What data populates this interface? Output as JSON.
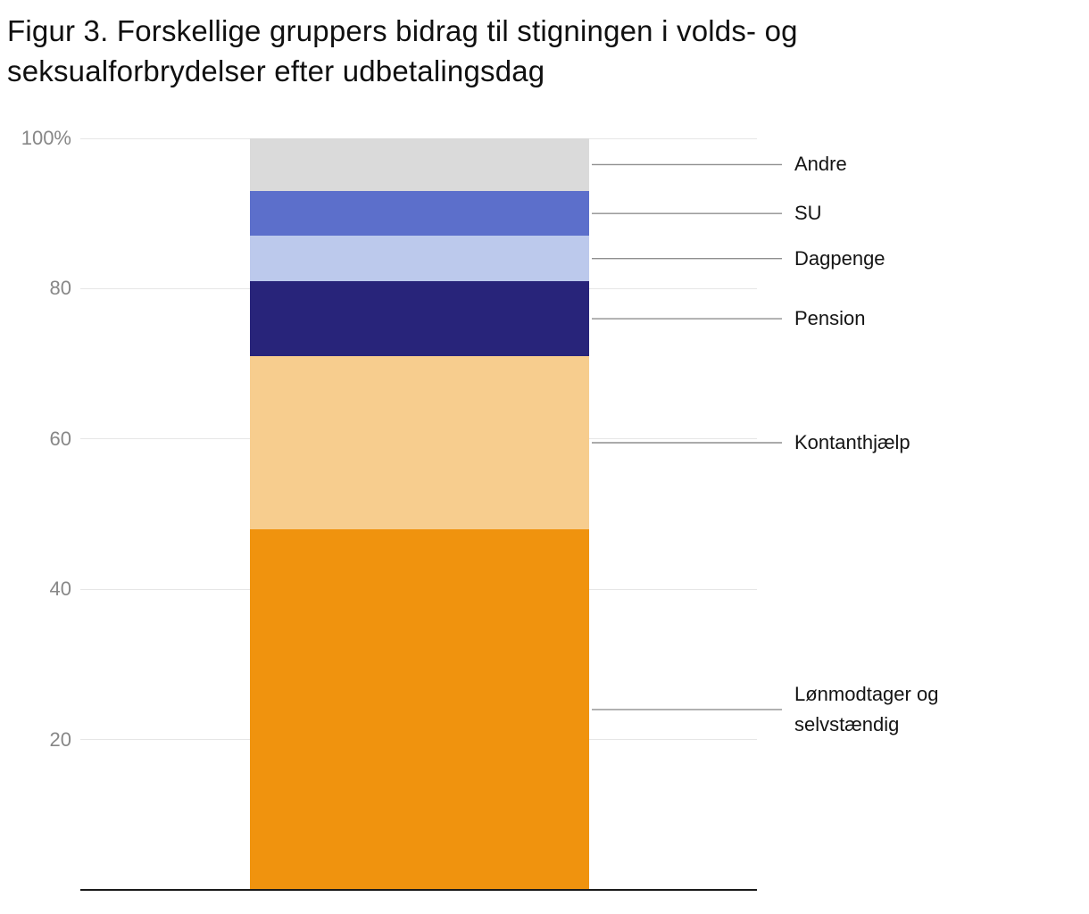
{
  "title": "Figur 3. Forskellige gruppers bidrag til stigningen i volds- og seksualforbrydelser efter udbetalingsdag",
  "chart_data": {
    "type": "bar",
    "subtype": "stacked-column-percent",
    "title": "Figur 3. Forskellige gruppers bidrag til stigningen i volds- og seksualforbrydelser efter udbetalingsdag",
    "xlabel": "",
    "ylabel": "",
    "ylim": [
      0,
      100
    ],
    "grid": true,
    "legend_position": "right-callouts",
    "yticks": [
      {
        "value": 20,
        "label": "20"
      },
      {
        "value": 40,
        "label": "40"
      },
      {
        "value": 60,
        "label": "60"
      },
      {
        "value": 80,
        "label": "80"
      },
      {
        "value": 100,
        "label": "100%"
      }
    ],
    "series": [
      {
        "name": "Lønmodtager og selvstændig",
        "value": 48,
        "color": "#F0930E"
      },
      {
        "name": "Kontanthjælp",
        "value": 23,
        "color": "#F7CD8E"
      },
      {
        "name": "Pension",
        "value": 10,
        "color": "#28247A"
      },
      {
        "name": "Dagpenge",
        "value": 6,
        "color": "#BCC9EC"
      },
      {
        "name": "SU",
        "value": 6,
        "color": "#5C6FCB"
      },
      {
        "name": "Andre",
        "value": 7,
        "color": "#DADADA"
      }
    ],
    "callout_line_color": "#8f8f8f"
  }
}
